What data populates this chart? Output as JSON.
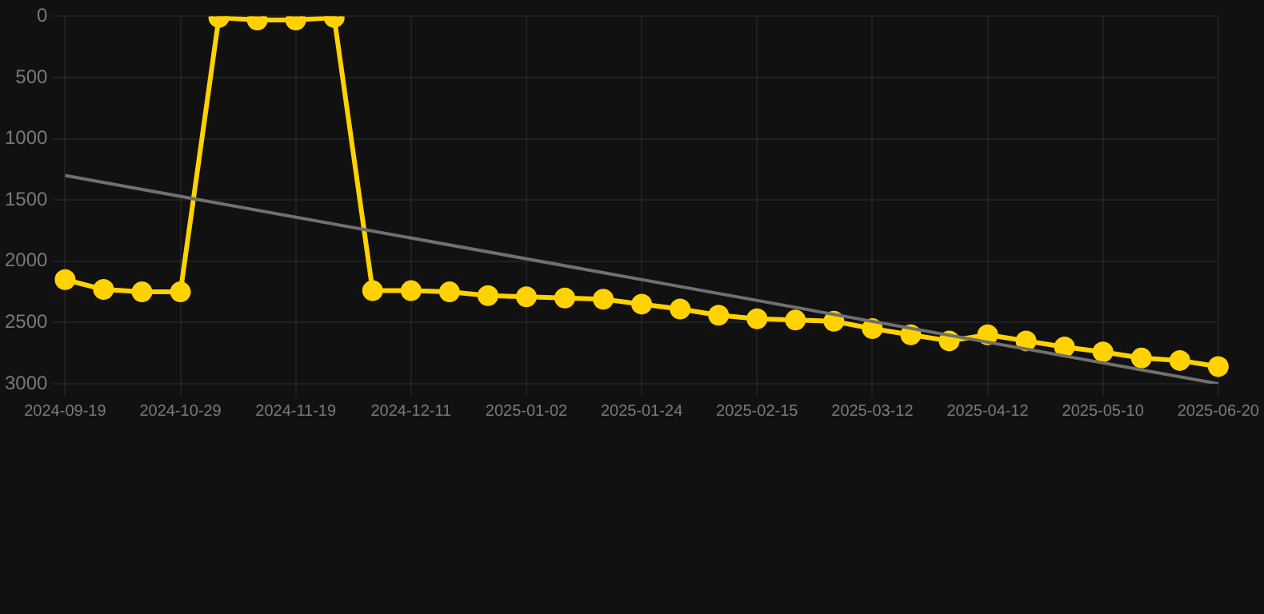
{
  "chart_data": {
    "type": "line",
    "categories": [
      "2024-09-19",
      null,
      null,
      "2024-10-29",
      null,
      null,
      "2024-11-19",
      null,
      null,
      "2024-12-11",
      null,
      null,
      "2025-01-02",
      null,
      null,
      "2025-01-24",
      null,
      null,
      "2025-02-15",
      null,
      null,
      "2025-03-12",
      null,
      null,
      "2025-04-12",
      null,
      null,
      "2025-05-10",
      null,
      null,
      "2025-06-20"
    ],
    "series": [
      {
        "color": "#ffd200",
        "marker": "circle",
        "values": [
          2150,
          2230,
          2250,
          2250,
          10,
          30,
          30,
          10,
          2240,
          2240,
          2250,
          2280,
          2290,
          2300,
          2310,
          2350,
          2390,
          2440,
          2470,
          2480,
          2490,
          2550,
          2600,
          2650,
          2600,
          2650,
          2700,
          2740,
          2790,
          2810,
          2860
        ]
      },
      {
        "type": "line",
        "color": "#707070",
        "marker": "none",
        "values": [
          1300,
          null,
          null,
          null,
          null,
          null,
          null,
          null,
          null,
          null,
          null,
          null,
          null,
          null,
          null,
          null,
          null,
          null,
          null,
          null,
          null,
          null,
          null,
          null,
          null,
          null,
          null,
          null,
          null,
          null,
          3000
        ]
      }
    ],
    "ylim": [
      3000,
      0
    ],
    "yticks": [
      0,
      500,
      1000,
      1500,
      2000,
      2500,
      3000
    ],
    "grid": true,
    "legend": false
  }
}
